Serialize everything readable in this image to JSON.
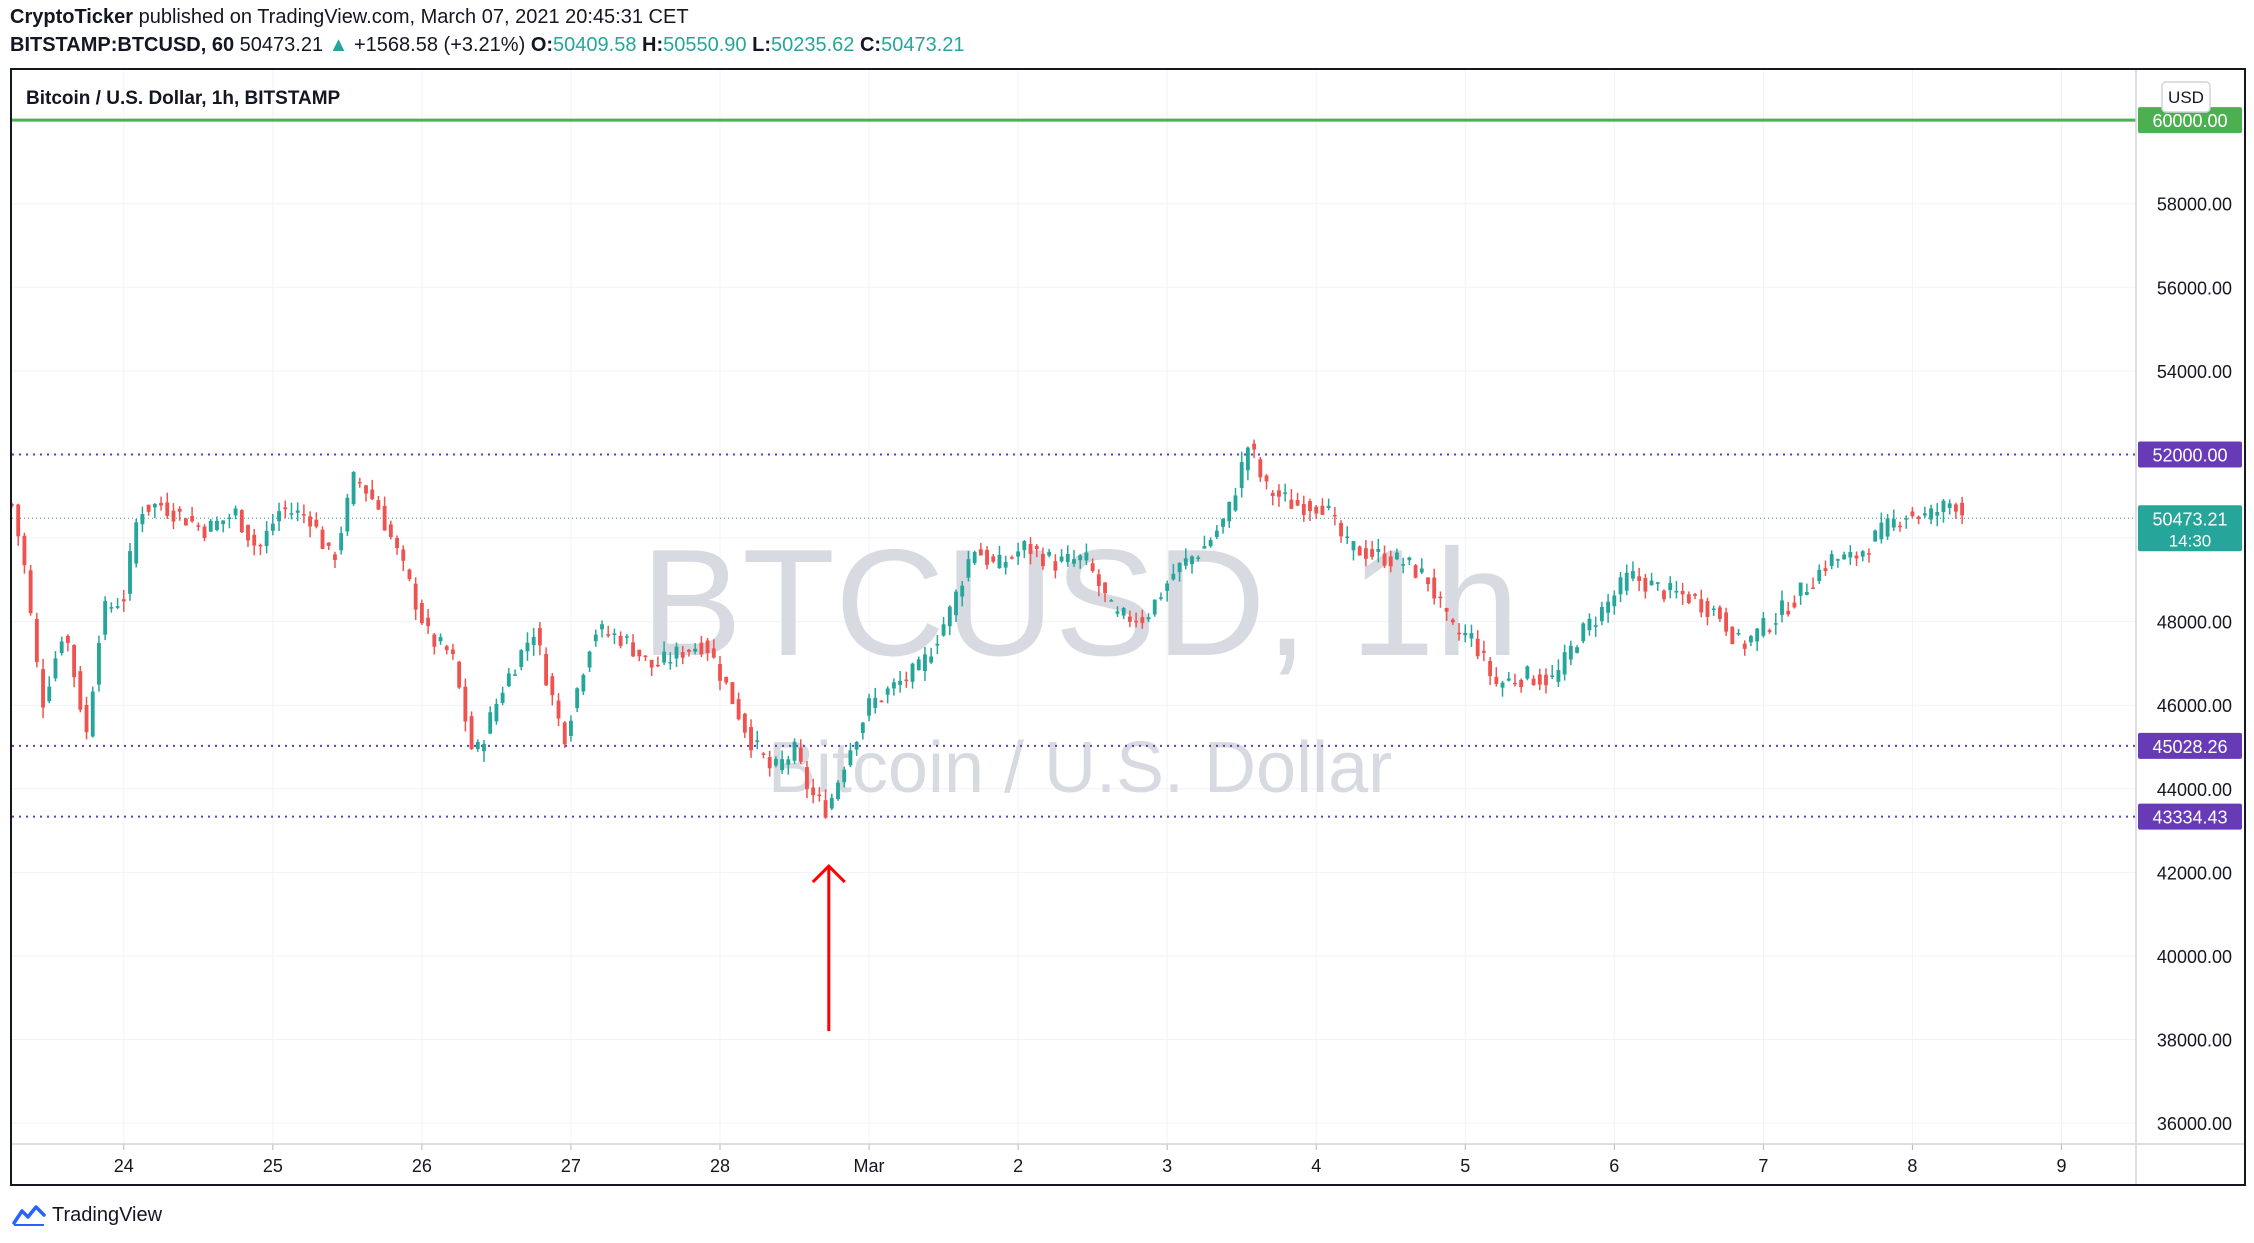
{
  "header": {
    "publisher": "CryptoTicker",
    "published_text": " published on TradingView.com, March 07, 2021 20:45:31 CET",
    "symbol": "BITSTAMP:BTCUSD, 60",
    "last": "50473.21",
    "change_arrow": "▲",
    "change": "+1568.58 (+3.21%)",
    "o_label": "O:",
    "o_value": "50409.58",
    "h_label": "H:",
    "h_value": "50550.90",
    "l_label": "L:",
    "l_value": "50235.62",
    "c_label": "C:",
    "c_value": "50473.21"
  },
  "footer": {
    "brand": "TradingView",
    "logo_icon": "tradingview-logo-icon"
  },
  "chart_data": {
    "type": "candlestick",
    "title": "Bitcoin / U.S. Dollar, 1h, BITSTAMP",
    "watermark_symbol": "BTCUSD, 1h",
    "watermark_name": "Bitcoin / U.S. Dollar",
    "currency_button": "USD",
    "ylim": [
      35500,
      61200
    ],
    "y_ticks": [
      36000,
      38000,
      40000,
      42000,
      44000,
      46000,
      48000,
      50000,
      52000,
      54000,
      56000,
      58000,
      60000
    ],
    "y_tick_labels": [
      "36000.00",
      "38000.00",
      "40000.00",
      "42000.00",
      "44000.00",
      "46000.00",
      "48000.00",
      "50000.00",
      "52000.00",
      "54000.00",
      "56000.00",
      "58000.00",
      "60000.00"
    ],
    "x_ticks": [
      "24",
      "25",
      "26",
      "27",
      "28",
      "Mar",
      "2",
      "3",
      "4",
      "5",
      "6",
      "7",
      "8",
      "9"
    ],
    "x_range_days": [
      23.25,
      37.5
    ],
    "horizontal_lines": [
      {
        "value": 60000,
        "label": "60000.00",
        "style": "solid",
        "color": "#4caf50"
      },
      {
        "value": 52000,
        "label": "52000.00",
        "style": "dotted",
        "color": "#673ab7"
      },
      {
        "value": 45028.26,
        "label": "45028.26",
        "style": "dotted",
        "color": "#673ab7"
      },
      {
        "value": 43334.43,
        "label": "43334.43",
        "style": "dotted",
        "color": "#673ab7"
      }
    ],
    "last_price": {
      "value": 50473.21,
      "label": "50473.21",
      "countdown": "14:30",
      "color": "#26a69a"
    },
    "up_color": "#26a69a",
    "down_color": "#ef5350",
    "annotation": {
      "type": "arrow",
      "color": "#ff0000",
      "day": 28.73,
      "from_price": 38200,
      "to_price": 42150
    },
    "anchors": [
      {
        "day": 23.25,
        "price": 50800
      },
      {
        "day": 23.33,
        "price": 49400
      },
      {
        "day": 23.45,
        "price": 46000
      },
      {
        "day": 23.6,
        "price": 47900
      },
      {
        "day": 23.75,
        "price": 45300
      },
      {
        "day": 23.85,
        "price": 48200
      },
      {
        "day": 24.0,
        "price": 48600
      },
      {
        "day": 24.1,
        "price": 50700
      },
      {
        "day": 24.25,
        "price": 50800
      },
      {
        "day": 24.55,
        "price": 50200
      },
      {
        "day": 24.75,
        "price": 50600
      },
      {
        "day": 24.9,
        "price": 49700
      },
      {
        "day": 25.05,
        "price": 50700
      },
      {
        "day": 25.25,
        "price": 50500
      },
      {
        "day": 25.4,
        "price": 49400
      },
      {
        "day": 25.55,
        "price": 51500
      },
      {
        "day": 25.7,
        "price": 50800
      },
      {
        "day": 25.85,
        "price": 49500
      },
      {
        "day": 26.05,
        "price": 47600
      },
      {
        "day": 26.2,
        "price": 47200
      },
      {
        "day": 26.35,
        "price": 44700
      },
      {
        "day": 26.55,
        "price": 46500
      },
      {
        "day": 26.75,
        "price": 47800
      },
      {
        "day": 26.95,
        "price": 45200
      },
      {
        "day": 27.15,
        "price": 47800
      },
      {
        "day": 27.35,
        "price": 47600
      },
      {
        "day": 27.55,
        "price": 46900
      },
      {
        "day": 27.75,
        "price": 47300
      },
      {
        "day": 27.9,
        "price": 47500
      },
      {
        "day": 28.05,
        "price": 46400
      },
      {
        "day": 28.2,
        "price": 45200
      },
      {
        "day": 28.35,
        "price": 44400
      },
      {
        "day": 28.5,
        "price": 44900
      },
      {
        "day": 28.6,
        "price": 43900
      },
      {
        "day": 28.72,
        "price": 43500
      },
      {
        "day": 28.85,
        "price": 44800
      },
      {
        "day": 29.0,
        "price": 46000
      },
      {
        "day": 29.15,
        "price": 46400
      },
      {
        "day": 29.35,
        "price": 46900
      },
      {
        "day": 29.55,
        "price": 48300
      },
      {
        "day": 29.7,
        "price": 49800
      },
      {
        "day": 29.85,
        "price": 49300
      },
      {
        "day": 30.05,
        "price": 49800
      },
      {
        "day": 30.25,
        "price": 49400
      },
      {
        "day": 30.45,
        "price": 49500
      },
      {
        "day": 30.65,
        "price": 48100
      },
      {
        "day": 30.85,
        "price": 48100
      },
      {
        "day": 31.05,
        "price": 49200
      },
      {
        "day": 31.25,
        "price": 49800
      },
      {
        "day": 31.4,
        "price": 50500
      },
      {
        "day": 31.55,
        "price": 52300
      },
      {
        "day": 31.65,
        "price": 51200
      },
      {
        "day": 31.85,
        "price": 50800
      },
      {
        "day": 32.05,
        "price": 50800
      },
      {
        "day": 32.2,
        "price": 49800
      },
      {
        "day": 32.4,
        "price": 49600
      },
      {
        "day": 32.6,
        "price": 49400
      },
      {
        "day": 32.75,
        "price": 49000
      },
      {
        "day": 32.9,
        "price": 47800
      },
      {
        "day": 33.05,
        "price": 47600
      },
      {
        "day": 33.2,
        "price": 46500
      },
      {
        "day": 33.4,
        "price": 46700
      },
      {
        "day": 33.6,
        "price": 46600
      },
      {
        "day": 33.75,
        "price": 47600
      },
      {
        "day": 33.95,
        "price": 48400
      },
      {
        "day": 34.1,
        "price": 49100
      },
      {
        "day": 34.35,
        "price": 48700
      },
      {
        "day": 34.5,
        "price": 48600
      },
      {
        "day": 34.7,
        "price": 48200
      },
      {
        "day": 34.85,
        "price": 47400
      },
      {
        "day": 35.05,
        "price": 48000
      },
      {
        "day": 35.25,
        "price": 48700
      },
      {
        "day": 35.45,
        "price": 49500
      },
      {
        "day": 35.6,
        "price": 49500
      },
      {
        "day": 35.75,
        "price": 50000
      },
      {
        "day": 35.95,
        "price": 50600
      },
      {
        "day": 36.1,
        "price": 50500
      },
      {
        "day": 36.28,
        "price": 50900
      },
      {
        "day": 36.36,
        "price": 50473
      }
    ]
  }
}
